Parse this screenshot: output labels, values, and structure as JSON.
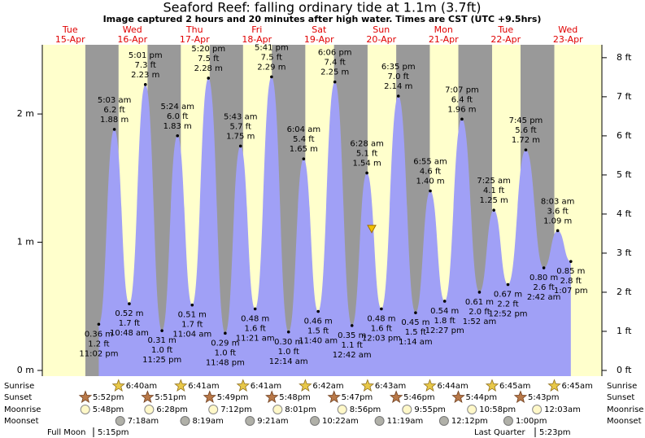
{
  "chart_data": {
    "type": "tide",
    "title": "Seaford Reef: falling  ordinary tide at 1.1m (3.7ft)",
    "subtitle": "Image captured 2 hours and 20 minutes after high water. Times are CST (UTC +9.5hrs)",
    "current_level": 1.1,
    "days": [
      {
        "weekday": "Tue",
        "date": "15-Apr"
      },
      {
        "weekday": "Wed",
        "date": "16-Apr"
      },
      {
        "weekday": "Thu",
        "date": "17-Apr"
      },
      {
        "weekday": "Fri",
        "date": "18-Apr"
      },
      {
        "weekday": "Sat",
        "date": "19-Apr"
      },
      {
        "weekday": "Sun",
        "date": "20-Apr"
      },
      {
        "weekday": "Mon",
        "date": "21-Apr"
      },
      {
        "weekday": "Tue",
        "date": "22-Apr"
      },
      {
        "weekday": "Wed",
        "date": "23-Apr"
      }
    ],
    "times": [
      "11:02 pm",
      "5:03 am",
      "10:48 am",
      "5:01 pm",
      "11:25 pm",
      "5:24 am",
      "11:04 am",
      "5:20 pm",
      "11:48 pm",
      "5:43 am",
      "11:21 am",
      "5:41 pm",
      "12:14 am",
      "6:04 am",
      "11:40 am",
      "6:06 pm",
      "12:42 am",
      "6:28 am",
      "12:03 pm",
      "6:35 pm",
      "1:14 am",
      "6:55 am",
      "12:27 pm",
      "7:07 pm",
      "1:52 am",
      "7:25 am",
      "12:52 pm",
      "7:45 pm",
      "2:42 am",
      "8:03 am",
      "1:07 pm"
    ],
    "values": [
      0.36,
      1.88,
      0.52,
      2.23,
      0.31,
      1.83,
      0.51,
      2.28,
      0.29,
      1.75,
      0.48,
      2.29,
      0.3,
      1.65,
      0.46,
      2.25,
      0.35,
      1.54,
      0.48,
      2.14,
      0.45,
      1.4,
      0.54,
      1.96,
      0.61,
      1.25,
      0.67,
      1.72,
      0.8,
      1.09,
      0.85
    ],
    "value_labels": [
      "0.36 m",
      "1.88 m",
      "0.52 m",
      "2.23 m",
      "0.31 m",
      "1.83 m",
      "0.51 m",
      "2.28 m",
      "0.29 m",
      "1.75 m",
      "0.48 m",
      "2.29 m",
      "0.30 m",
      "1.65 m",
      "0.46 m",
      "2.25 m",
      "0.35 m",
      "1.54 m",
      "0.48 m",
      "2.14 m",
      "0.45 m",
      "1.40 m",
      "0.54 m",
      "1.96 m",
      "0.61 m",
      "1.25 m",
      "0.67 m",
      "1.72 m",
      "0.80 m",
      "1.09 m",
      "0.85 m"
    ],
    "ft_labels": [
      "1.2 ft",
      "6.2 ft",
      "1.7 ft",
      "7.3 ft",
      "1.0 ft",
      "6.0 ft",
      "1.7 ft",
      "7.5 ft",
      "1.0 ft",
      "5.7 ft",
      "1.6 ft",
      "7.5 ft",
      "1.0 ft",
      "5.4 ft",
      "1.5 ft",
      "7.4 ft",
      "1.1 ft",
      "5.1 ft",
      "1.6 ft",
      "7.0 ft",
      "1.5 ft",
      "4.6 ft",
      "1.8 ft",
      "6.4 ft",
      "2.0 ft",
      "4.1 ft",
      "2.2 ft",
      "5.6 ft",
      "2.6 ft",
      "3.6 ft",
      "2.8 ft"
    ],
    "color": "#a0a0f6",
    "ylim": [
      0,
      2.54
    ],
    "yticks": [
      {
        "value": 0,
        "label": "0 m"
      },
      {
        "value": 1,
        "label": "1 m"
      },
      {
        "value": 2,
        "label": "2 m"
      }
    ],
    "y2lim": [
      0,
      8.33
    ],
    "y2ticks": [
      {
        "value": 0,
        "label": "0 ft"
      },
      {
        "value": 1,
        "label": "1 ft"
      },
      {
        "value": 2,
        "label": "2 ft"
      },
      {
        "value": 3,
        "label": "3 ft"
      },
      {
        "value": 4,
        "label": "4 ft"
      },
      {
        "value": 5,
        "label": "5 ft"
      },
      {
        "value": 6,
        "label": "6 ft"
      },
      {
        "value": 7,
        "label": "7 ft"
      },
      {
        "value": 8,
        "label": "8 ft"
      }
    ],
    "rows": {
      "sunrise": "Sunrise",
      "sunset": "Sunset",
      "moonrise": "Moonrise",
      "moonset": "Moonset"
    },
    "sunrise": [
      {
        "date": "16-Apr",
        "time": "6:40am"
      },
      {
        "date": "17-Apr",
        "time": "6:41am"
      },
      {
        "date": "18-Apr",
        "time": "6:41am"
      },
      {
        "date": "19-Apr",
        "time": "6:42am"
      },
      {
        "date": "20-Apr",
        "time": "6:43am"
      },
      {
        "date": "21-Apr",
        "time": "6:44am"
      },
      {
        "date": "22-Apr",
        "time": "6:45am"
      },
      {
        "date": "23-Apr",
        "time": "6:45am"
      }
    ],
    "sunset": [
      {
        "date": "15-Apr",
        "time": "5:52pm"
      },
      {
        "date": "16-Apr",
        "time": "5:51pm"
      },
      {
        "date": "17-Apr",
        "time": "5:49pm"
      },
      {
        "date": "18-Apr",
        "time": "5:48pm"
      },
      {
        "date": "19-Apr",
        "time": "5:47pm"
      },
      {
        "date": "20-Apr",
        "time": "5:46pm"
      },
      {
        "date": "21-Apr",
        "time": "5:44pm"
      },
      {
        "date": "22-Apr",
        "time": "5:43pm"
      }
    ],
    "moonrise": [
      {
        "date": "15-Apr",
        "time": "5:48pm"
      },
      {
        "date": "16-Apr",
        "time": "6:28pm"
      },
      {
        "date": "17-Apr",
        "time": "7:12pm"
      },
      {
        "date": "18-Apr",
        "time": "8:01pm"
      },
      {
        "date": "19-Apr",
        "time": "8:56pm"
      },
      {
        "date": "20-Apr",
        "time": "9:55pm"
      },
      {
        "date": "21-Apr",
        "time": "10:58pm"
      },
      {
        "date": "23-Apr",
        "time": "12:03am"
      }
    ],
    "moonset": [
      {
        "date": "16-Apr",
        "time": "7:18am"
      },
      {
        "date": "17-Apr",
        "time": "8:19am"
      },
      {
        "date": "18-Apr",
        "time": "9:21am"
      },
      {
        "date": "19-Apr",
        "time": "10:22am"
      },
      {
        "date": "20-Apr",
        "time": "11:19am"
      },
      {
        "date": "21-Apr",
        "time": "12:12pm"
      },
      {
        "date": "22-Apr",
        "time": "1:00pm"
      }
    ],
    "moon_phases": [
      {
        "name": "Full Moon",
        "time": "5:15pm"
      },
      {
        "name": "Last Quarter",
        "time": "5:23pm"
      }
    ]
  }
}
